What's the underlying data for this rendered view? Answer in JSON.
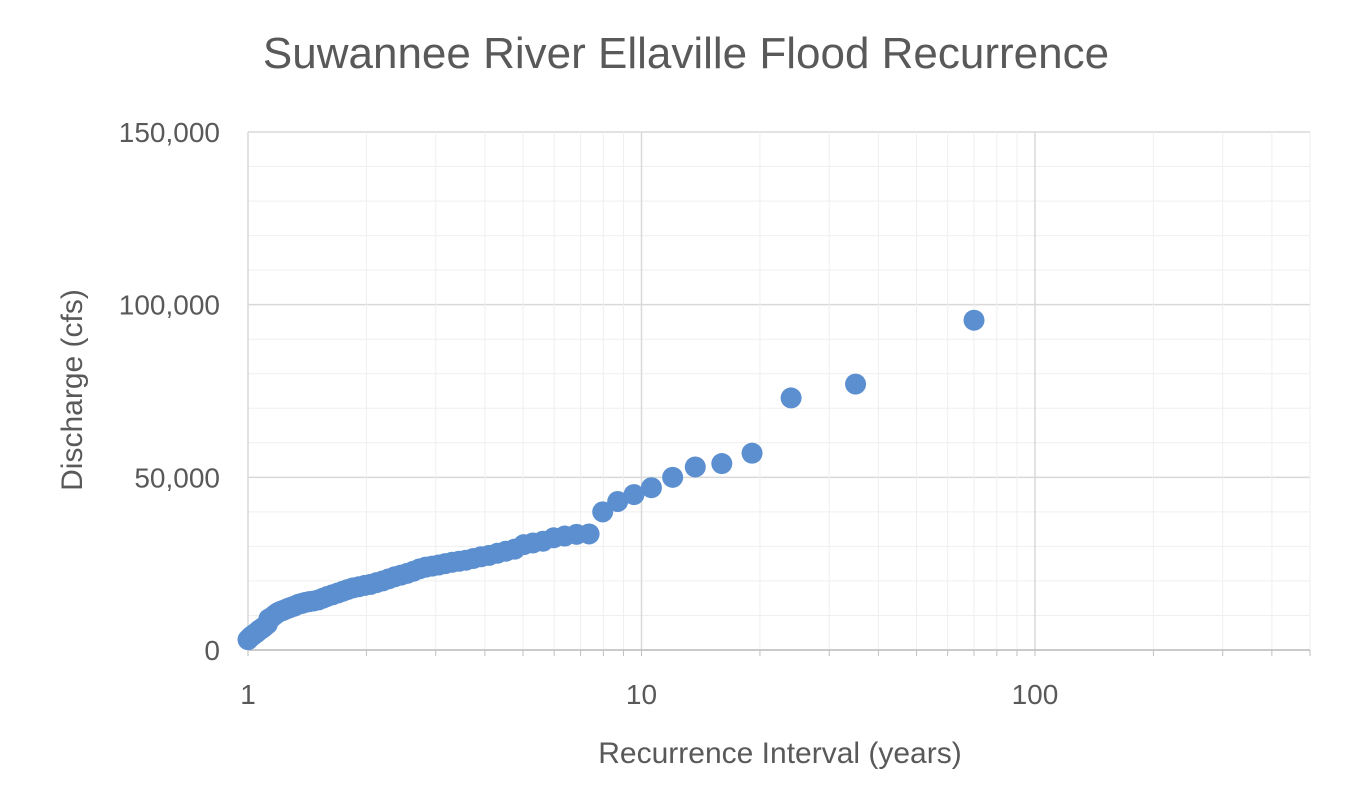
{
  "chart_data": {
    "type": "scatter",
    "title": "Suwannee River Ellaville Flood Recurrence",
    "xlabel": "Recurrence Interval (years)",
    "ylabel": "Discharge (cfs)",
    "x_scale": "log",
    "xlim": [
      1,
      500
    ],
    "ylim": [
      0,
      150000
    ],
    "x_ticks": [
      1,
      10,
      100
    ],
    "x_tick_labels": [
      "1",
      "10",
      "100"
    ],
    "y_ticks": [
      0,
      50000,
      100000,
      150000
    ],
    "y_tick_labels": [
      "0",
      "50,000",
      "100,000",
      "150,000"
    ],
    "grid": true,
    "legend": "none",
    "marker_color": "#5b8fd0",
    "series": [
      {
        "points": [
          [
            1.0,
            3000
          ],
          [
            1.01,
            3500
          ],
          [
            1.02,
            4000
          ],
          [
            1.03,
            4300
          ],
          [
            1.04,
            4700
          ],
          [
            1.05,
            5000
          ],
          [
            1.06,
            5400
          ],
          [
            1.07,
            5800
          ],
          [
            1.08,
            6100
          ],
          [
            1.09,
            6400
          ],
          [
            1.1,
            6800
          ],
          [
            1.12,
            7500
          ],
          [
            1.13,
            9000
          ],
          [
            1.15,
            9500
          ],
          [
            1.17,
            10200
          ],
          [
            1.19,
            10800
          ],
          [
            1.21,
            11200
          ],
          [
            1.23,
            11500
          ],
          [
            1.26,
            12000
          ],
          [
            1.28,
            12300
          ],
          [
            1.31,
            12700
          ],
          [
            1.34,
            13200
          ],
          [
            1.37,
            13500
          ],
          [
            1.4,
            13800
          ],
          [
            1.43,
            14000
          ],
          [
            1.47,
            14200
          ],
          [
            1.51,
            14500
          ],
          [
            1.55,
            15000
          ],
          [
            1.59,
            15500
          ],
          [
            1.64,
            16000
          ],
          [
            1.69,
            16500
          ],
          [
            1.74,
            17000
          ],
          [
            1.79,
            17500
          ],
          [
            1.85,
            18000
          ],
          [
            1.91,
            18300
          ],
          [
            1.98,
            18700
          ],
          [
            2.05,
            19000
          ],
          [
            2.12,
            19500
          ],
          [
            2.2,
            20000
          ],
          [
            2.28,
            20600
          ],
          [
            2.36,
            21200
          ],
          [
            2.45,
            21700
          ],
          [
            2.54,
            22200
          ],
          [
            2.63,
            22800
          ],
          [
            2.73,
            23500
          ],
          [
            2.83,
            24000
          ],
          [
            2.94,
            24300
          ],
          [
            3.05,
            24600
          ],
          [
            3.17,
            25000
          ],
          [
            3.3,
            25400
          ],
          [
            3.44,
            25700
          ],
          [
            3.58,
            26000
          ],
          [
            3.74,
            26500
          ],
          [
            3.91,
            27000
          ],
          [
            4.1,
            27400
          ],
          [
            4.3,
            28000
          ],
          [
            4.52,
            28600
          ],
          [
            4.76,
            29200
          ],
          [
            5.02,
            30500
          ],
          [
            5.3,
            31000
          ],
          [
            5.62,
            31500
          ],
          [
            5.98,
            32500
          ],
          [
            6.38,
            33000
          ],
          [
            6.84,
            33500
          ],
          [
            7.36,
            33600
          ],
          [
            7.97,
            40000
          ],
          [
            8.7,
            43000
          ],
          [
            9.57,
            45000
          ],
          [
            10.6,
            47000
          ],
          [
            12.0,
            50000
          ],
          [
            13.7,
            53000
          ],
          [
            16.0,
            54000
          ],
          [
            19.1,
            57000
          ],
          [
            24.0,
            73000
          ],
          [
            35.0,
            77000
          ],
          [
            70.0,
            95500
          ]
        ]
      }
    ]
  }
}
